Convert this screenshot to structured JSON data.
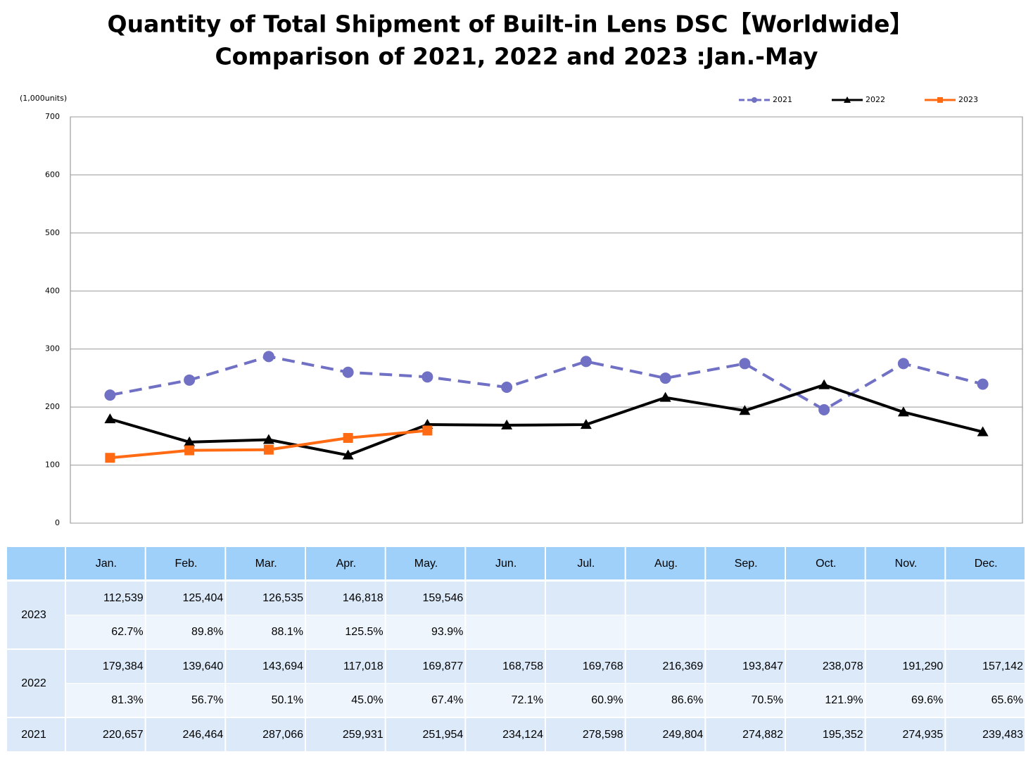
{
  "chart_data": {
    "type": "line",
    "title": [
      "Quantity of Total Shipment of Built-in Lens DSC【Worldwide】",
      "Comparison of 2021, 2022 and 2023 :Jan.-May"
    ],
    "y_axis_label": "(1,000units)",
    "categories": [
      "Jan.",
      "Feb.",
      "Mar.",
      "Apr.",
      "May.",
      "Jun.",
      "Jul.",
      "Aug.",
      "Sep.",
      "Oct.",
      "Nov.",
      "Dec."
    ],
    "ylim": [
      0,
      700
    ],
    "yticks": [
      0,
      100,
      200,
      300,
      400,
      500,
      600,
      700
    ],
    "grid": true,
    "legend": "top-right",
    "series": [
      {
        "name": "2021",
        "color": "#7070c4",
        "dash": true,
        "marker": "circle",
        "values": [
          220.657,
          246.464,
          287.066,
          259.931,
          251.954,
          234.124,
          278.598,
          249.804,
          274.882,
          195.352,
          274.935,
          239.483
        ],
        "value_labels": [
          "220,657",
          "246,464",
          "287,066",
          "259,931",
          "251,954",
          "234,124",
          "278,598",
          "249,804",
          "274,882",
          "195,352",
          "274,935",
          "239,483"
        ]
      },
      {
        "name": "2022",
        "color": "#000000",
        "dash": false,
        "marker": "triangle",
        "values": [
          179.384,
          139.64,
          143.694,
          117.018,
          169.877,
          168.758,
          169.768,
          216.369,
          193.847,
          238.078,
          191.29,
          157.142
        ],
        "value_labels": [
          "179,384",
          "139,640",
          "143,694",
          "117,018",
          "169,877",
          "168,758",
          "169,768",
          "216,369",
          "193,847",
          "238,078",
          "191,290",
          "157,142"
        ],
        "ratios": [
          "81.3%",
          "56.7%",
          "50.1%",
          "45.0%",
          "67.4%",
          "72.1%",
          "60.9%",
          "86.6%",
          "70.5%",
          "121.9%",
          "69.6%",
          "65.6%"
        ]
      },
      {
        "name": "2023",
        "color": "#ff6a13",
        "dash": false,
        "marker": "square",
        "values": [
          112.539,
          125.404,
          126.535,
          146.818,
          159.546,
          null,
          null,
          null,
          null,
          null,
          null,
          null
        ],
        "value_labels": [
          "112,539",
          "125,404",
          "126,535",
          "146,818",
          "159,546",
          null,
          null,
          null,
          null,
          null,
          null,
          null
        ],
        "ratios": [
          "62.7%",
          "89.8%",
          "88.1%",
          "125.5%",
          "93.9%",
          null,
          null,
          null,
          null,
          null,
          null,
          null
        ]
      }
    ]
  }
}
